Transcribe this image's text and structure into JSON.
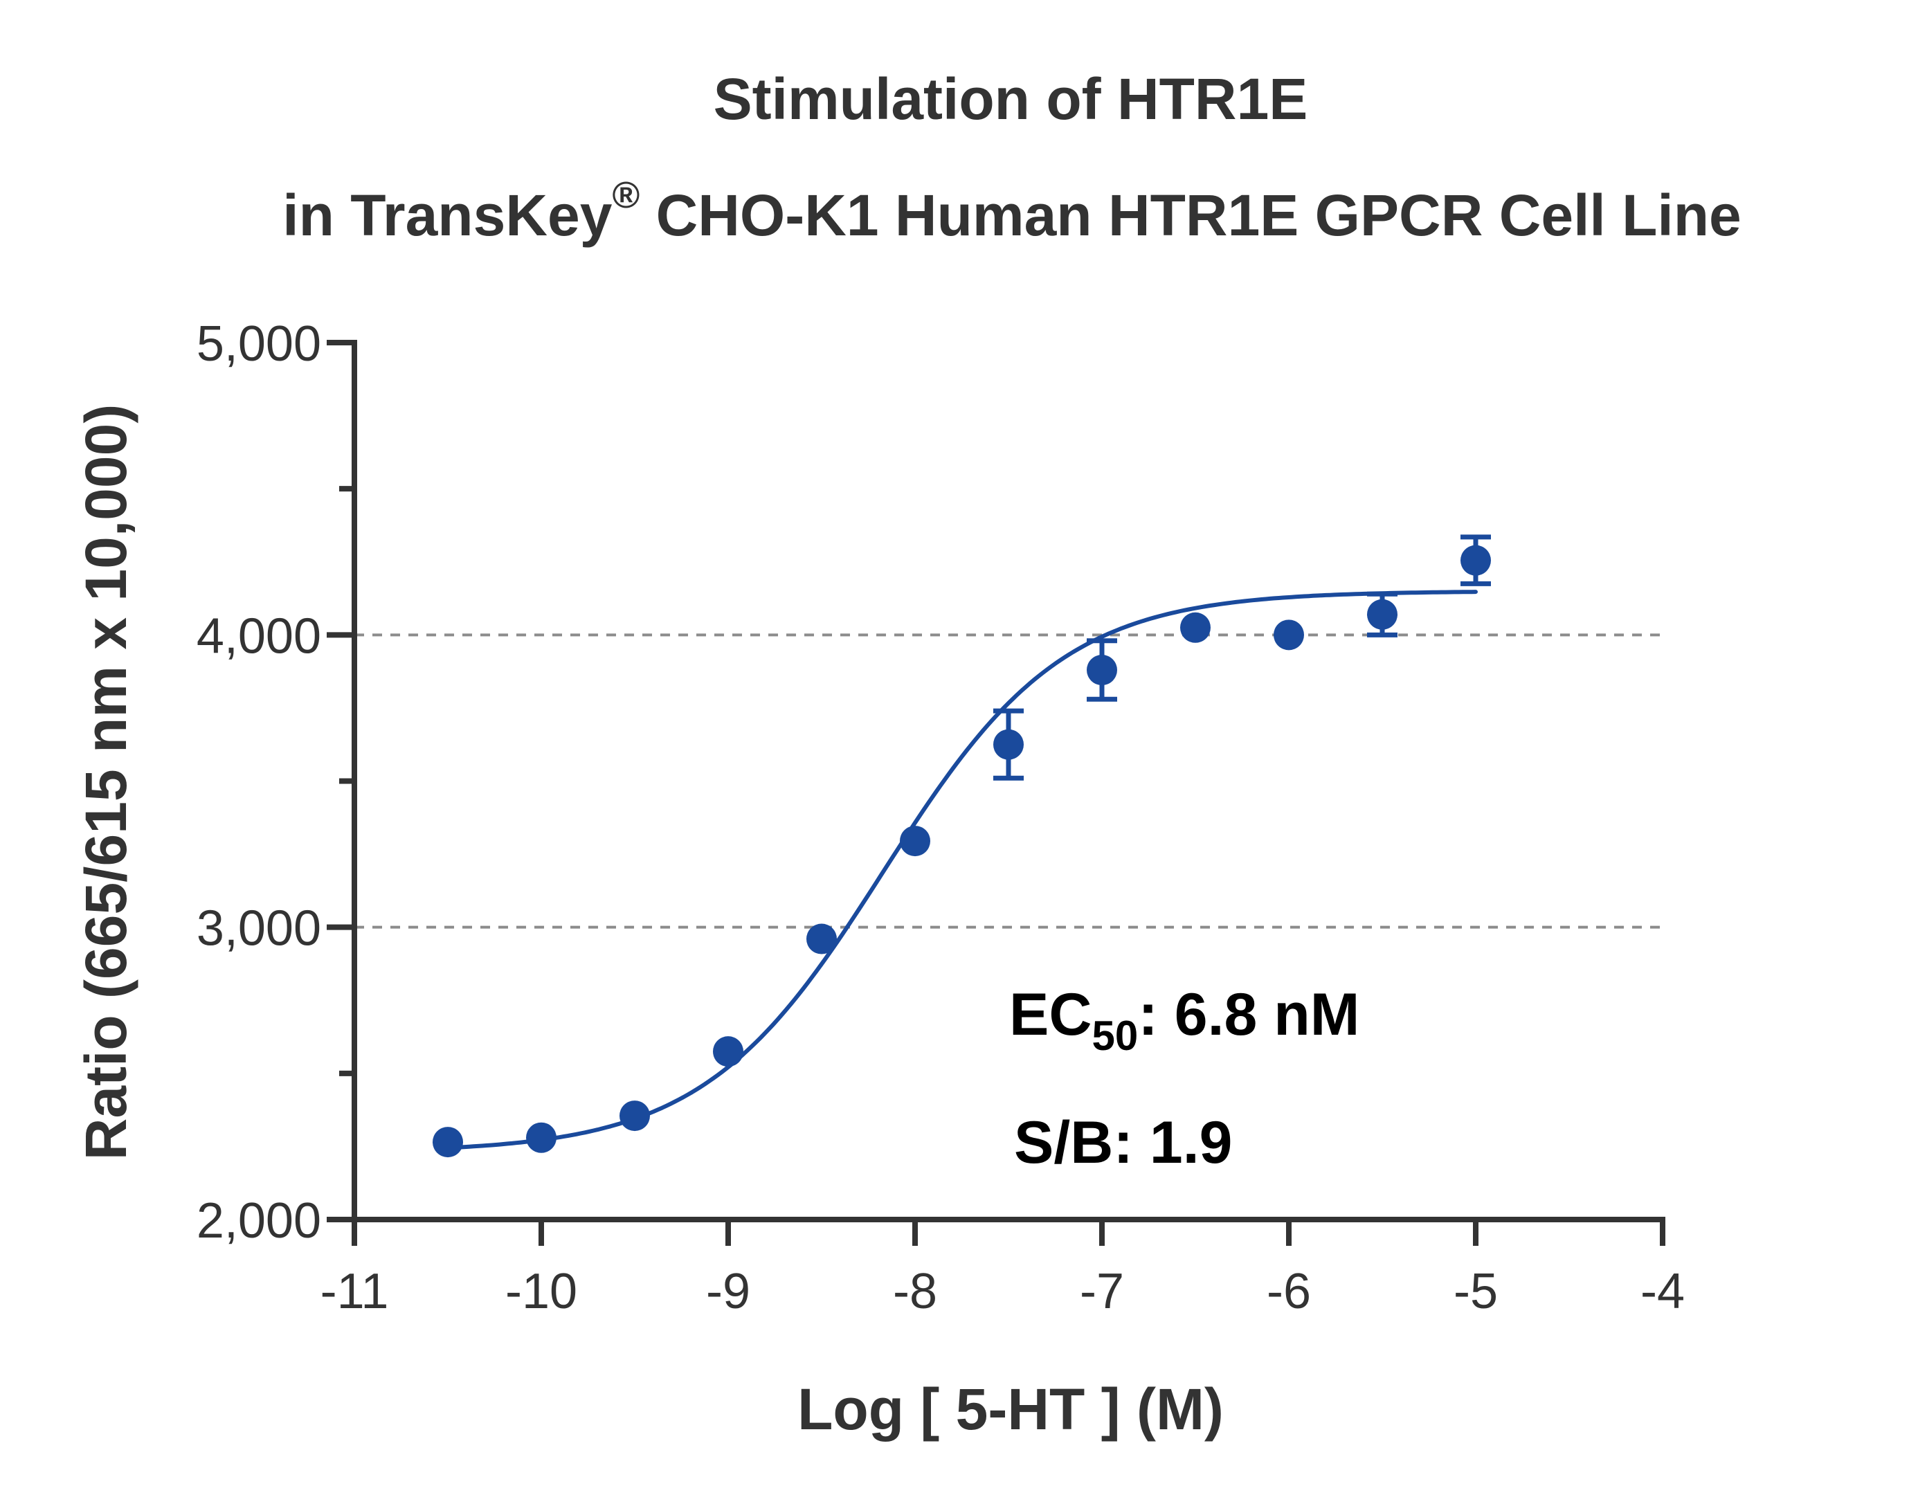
{
  "chart_data": {
    "type": "scatter",
    "title_line1": "Stimulation of  HTR1E",
    "title_line2_prefix": "in TransKey",
    "title_registered": "®",
    "title_line2_suffix": " CHO-K1 Human HTR1E GPCR Cell Line",
    "xlabel": "Log [ 5-HT ]  (M)",
    "ylabel": "Ratio (665/615 nm x 10,000)",
    "xlim": [
      -11,
      -4
    ],
    "ylim": [
      2000,
      5000
    ],
    "x_ticks": [
      -11,
      -10,
      -9,
      -8,
      -7,
      -6,
      -5,
      -4
    ],
    "x_tick_labels": [
      "-11",
      "-10",
      "-9",
      "-8",
      "-7",
      "-6",
      "-5",
      "-4"
    ],
    "y_major_ticks": [
      2000,
      3000,
      4000,
      5000
    ],
    "y_tick_labels": [
      "2,000",
      "3,000",
      "4,000",
      "5,000"
    ],
    "y_minor_ticks": [
      2500,
      3500,
      4500
    ],
    "gridlines_y": [
      3000,
      4000
    ],
    "grid": "dashed horizontal at 3,000 and 4,000",
    "series": [
      {
        "x": [
          -10.5,
          -10,
          -9.5,
          -9,
          -8.5,
          -8,
          -7.5,
          -7,
          -6.5,
          -6,
          -5.5,
          -5
        ],
        "y": [
          2265,
          2280,
          2355,
          2575,
          2960,
          3295,
          3625,
          3880,
          4025,
          4000,
          4070,
          4255
        ],
        "error": [
          0,
          0,
          0,
          0,
          0,
          0,
          115,
          100,
          0,
          0,
          70,
          80
        ],
        "color": "#1a4a9c"
      }
    ],
    "fit_curve": {
      "model": "four-parameter logistic",
      "bottom": 2230,
      "top": 4150,
      "log_ec50": -8.17,
      "hill_slope": 0.9,
      "x_range": [
        -10.5,
        -5
      ],
      "color": "#1a4a9c"
    },
    "annotations": {
      "ec50_prefix": "EC",
      "ec50_subscript": "50",
      "ec50_value": ": 6.8 nM",
      "sb_text": "S/B: 1.9"
    },
    "colors": {
      "axis": "#333333",
      "grid": "#8c8c8c",
      "marker": "#1a4a9c",
      "text": "#333333",
      "annotation": "#000000"
    }
  }
}
